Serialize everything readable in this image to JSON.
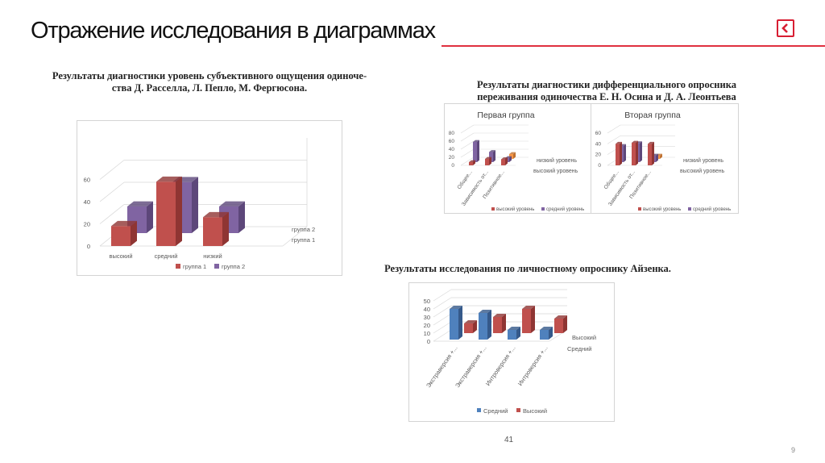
{
  "slide": {
    "title": "Отражение исследования в диаграммах",
    "page_center": "41",
    "page_number": "9"
  },
  "captions": {
    "c1_line1": "Результаты диагностики уровень субъективного ощущения одиноче-",
    "c1_line2": "ства Д. Расселла, Л. Пепло, М. Фергюсона.",
    "c2_line1": "Результаты диагностики дифференциального опросника",
    "c2_line2": "переживания одиночества Е. Н. Осина и Д. А. Леонтьева",
    "c3": "Результаты исследования по личностному опроснику Айзенка."
  },
  "colors": {
    "red": "#c0504d",
    "red_dark": "#8f3533",
    "purple": "#8064a2",
    "purple_dark": "#5d477a",
    "blue": "#4f81bd",
    "blue_dark": "#35598a",
    "orange": "#f79646",
    "grid": "#d9d9d9",
    "accent": "#d81e33"
  },
  "chart_data": [
    {
      "type": "bar",
      "categories": [
        "высокий",
        "средний",
        "низкий"
      ],
      "series": [
        {
          "name": "группа 1",
          "values": [
            18,
            58,
            26
          ]
        },
        {
          "name": "группа 2",
          "values": [
            24,
            46,
            24
          ]
        }
      ],
      "depth_labels": [
        "группа 2",
        "группа 1"
      ],
      "y_ticks": [
        0,
        20,
        40,
        60
      ],
      "ylim": [
        0,
        80
      ],
      "legend": "bottom"
    },
    {
      "type": "bar",
      "title": "Первая группа",
      "categories": [
        "Общее...",
        "Зависимость от...",
        "Позитивное..."
      ],
      "series": [
        {
          "name": "высокий уровень",
          "values": [
            8,
            16,
            15
          ]
        },
        {
          "name": "средний уровень",
          "values": [
            50,
            25,
            10
          ]
        },
        {
          "name": "низкий уровень",
          "values": [
            0,
            0,
            12
          ]
        }
      ],
      "depth_labels": [
        "низкий уровень",
        "высокий уровень"
      ],
      "y_ticks": [
        0,
        20,
        40,
        60,
        80
      ],
      "ylim": [
        0,
        80
      ],
      "legend": "bottom"
    },
    {
      "type": "bar",
      "title": "Вторая группа",
      "categories": [
        "Общее...",
        "Зависимость от...",
        "Позитивное..."
      ],
      "series": [
        {
          "name": "высокий уровень",
          "values": [
            40,
            42,
            40
          ]
        },
        {
          "name": "средний уровень",
          "values": [
            30,
            35,
            12
          ]
        },
        {
          "name": "низкий уровень",
          "values": [
            0,
            0,
            6
          ]
        }
      ],
      "depth_labels": [
        "низкий уровень",
        "высокий уровень"
      ],
      "y_ticks": [
        0,
        20,
        40,
        60
      ],
      "ylim": [
        0,
        60
      ],
      "legend": "bottom"
    },
    {
      "type": "bar",
      "categories": [
        "Экстраверсия +...",
        "Экстраверсия +...",
        "Интроверсия +...",
        "Интроверсия +..."
      ],
      "series": [
        {
          "name": "Средний",
          "values": [
            38,
            33,
            12,
            12
          ]
        },
        {
          "name": "Высокий",
          "values": [
            12,
            20,
            30,
            18
          ]
        }
      ],
      "depth_labels": [
        "Высокий",
        "Средний"
      ],
      "y_ticks": [
        0,
        10,
        20,
        30,
        40,
        50
      ],
      "ylim": [
        0,
        50
      ],
      "legend": "bottom"
    }
  ]
}
